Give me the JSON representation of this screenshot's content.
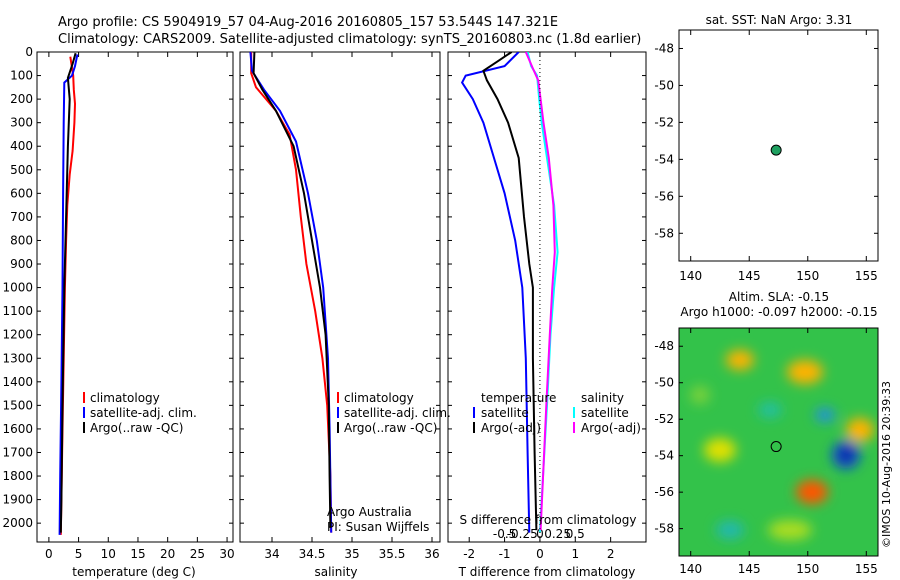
{
  "header": {
    "line1": "Argo profile: CS 5904919_57 04-Aug-2016 20160805_157 53.544S 147.321E",
    "line2": "Climatology: CARS2009. Satellite-adjusted climatology: synTS_20160803.nc (1.8d earlier)"
  },
  "colors": {
    "climatology": "#ff0000",
    "satellite": "#0000ff",
    "argo": "#000000",
    "sat_salinity": "#00ffff",
    "argo_salinity": "#ff00ff",
    "marker": "#1fa060"
  },
  "chart_data": [
    {
      "type": "line",
      "xlabel": "temperature (deg C)",
      "xlim": [
        -2,
        31
      ],
      "ylim": [
        2080,
        0
      ],
      "xticks": [
        0,
        5,
        10,
        15,
        20,
        25,
        30
      ],
      "yticks": [
        0,
        100,
        200,
        300,
        400,
        500,
        600,
        700,
        800,
        900,
        1000,
        1100,
        1200,
        1300,
        1400,
        1500,
        1600,
        1700,
        1800,
        1900,
        2000
      ],
      "legend": [
        "climatology",
        "satellite-adj. clim.",
        "Argo(..raw -QC)"
      ],
      "series": [
        {
          "name": "climatology",
          "color": "#ff0000",
          "points": [
            [
              3.6,
              20
            ],
            [
              4.1,
              100
            ],
            [
              4.2,
              160
            ],
            [
              4.4,
              220
            ],
            [
              4.3,
              300
            ],
            [
              4.0,
              420
            ],
            [
              3.5,
              520
            ],
            [
              3.1,
              650
            ],
            [
              2.9,
              800
            ],
            [
              2.7,
              1000
            ],
            [
              2.5,
              1300
            ],
            [
              2.3,
              1600
            ],
            [
              2.1,
              1900
            ],
            [
              2.0,
              2050
            ]
          ]
        },
        {
          "name": "satellite-adj. clim.",
          "color": "#0000ff",
          "points": [
            [
              4.8,
              10
            ],
            [
              4.4,
              60
            ],
            [
              3.9,
              100
            ],
            [
              2.6,
              130
            ],
            [
              2.5,
              300
            ],
            [
              2.4,
              600
            ],
            [
              2.3,
              1000
            ],
            [
              2.1,
              1400
            ],
            [
              1.9,
              1800
            ],
            [
              1.8,
              2050
            ]
          ]
        },
        {
          "name": "Argo(..raw -QC)",
          "color": "#000000",
          "points": [
            [
              4.5,
              5
            ],
            [
              4.0,
              50
            ],
            [
              3.2,
              110
            ],
            [
              3.5,
              200
            ],
            [
              3.2,
              400
            ],
            [
              2.9,
              700
            ],
            [
              2.6,
              1000
            ],
            [
              2.3,
              1500
            ],
            [
              2.1,
              1900
            ],
            [
              2.0,
              2040
            ]
          ]
        }
      ]
    },
    {
      "type": "line",
      "xlabel": "salinity",
      "xlim": [
        33.6,
        36.1
      ],
      "ylim": [
        2080,
        0
      ],
      "xticks": [
        34,
        34.5,
        35,
        35.5,
        36
      ],
      "legend": [
        "climatology",
        "satellite-adj. clim.",
        "Argo(..raw -QC)"
      ],
      "footnote": [
        "Argo Australia",
        "PI: Susan Wijffels"
      ],
      "series": [
        {
          "name": "climatology",
          "color": "#ff0000",
          "points": [
            [
              33.74,
              0
            ],
            [
              33.74,
              90
            ],
            [
              33.8,
              150
            ],
            [
              34.05,
              250
            ],
            [
              34.22,
              350
            ],
            [
              34.3,
              500
            ],
            [
              34.36,
              700
            ],
            [
              34.43,
              900
            ],
            [
              34.54,
              1100
            ],
            [
              34.63,
              1300
            ],
            [
              34.69,
              1500
            ],
            [
              34.73,
              1800
            ],
            [
              34.74,
              2040
            ]
          ]
        },
        {
          "name": "satellite-adj. clim.",
          "color": "#0000ff",
          "points": [
            [
              33.73,
              0
            ],
            [
              33.75,
              80
            ],
            [
              33.9,
              160
            ],
            [
              34.1,
              250
            ],
            [
              34.3,
              380
            ],
            [
              34.45,
              600
            ],
            [
              34.56,
              800
            ],
            [
              34.64,
              1000
            ],
            [
              34.7,
              1300
            ],
            [
              34.72,
              1600
            ],
            [
              34.74,
              2040
            ]
          ]
        },
        {
          "name": "Argo(..raw -QC)",
          "color": "#000000",
          "points": [
            [
              33.78,
              0
            ],
            [
              33.77,
              90
            ],
            [
              33.88,
              160
            ],
            [
              34.05,
              250
            ],
            [
              34.27,
              400
            ],
            [
              34.4,
              600
            ],
            [
              34.5,
              800
            ],
            [
              34.6,
              1000
            ],
            [
              34.67,
              1200
            ],
            [
              34.71,
              1500
            ],
            [
              34.72,
              1800
            ],
            [
              34.73,
              2020
            ]
          ]
        }
      ]
    },
    {
      "type": "line",
      "xlabel": "T difference from climatology",
      "xlabel_top": "S difference from climatology",
      "xlim": [
        -2.6,
        3.0
      ],
      "ylim": [
        2080,
        0
      ],
      "xticks": [
        -2,
        -1,
        0,
        1,
        2
      ],
      "sticks": [
        -0.5,
        -0.25,
        0,
        0.25,
        0.5
      ],
      "legend_left_title": "temperature",
      "legend_right_title": "salinity",
      "legend_left": [
        "satellite",
        "Argo(-adj)"
      ],
      "legend_right": [
        "satellite",
        "Argo(-adj)"
      ],
      "series": [
        {
          "name": "satellite",
          "color": "#0000ff",
          "points": [
            [
              -0.6,
              0
            ],
            [
              -1.0,
              60
            ],
            [
              -2.1,
              100
            ],
            [
              -2.2,
              130
            ],
            [
              -1.9,
              200
            ],
            [
              -1.6,
              300
            ],
            [
              -1.3,
              450
            ],
            [
              -1.0,
              600
            ],
            [
              -0.7,
              800
            ],
            [
              -0.5,
              1000
            ],
            [
              -0.4,
              1300
            ],
            [
              -0.35,
              1700
            ],
            [
              -0.3,
              2040
            ]
          ]
        },
        {
          "name": "Argo(-adj)",
          "color": "#000000",
          "points": [
            [
              -0.8,
              0
            ],
            [
              -1.2,
              40
            ],
            [
              -1.6,
              80
            ],
            [
              -1.5,
              120
            ],
            [
              -1.2,
              200
            ],
            [
              -0.9,
              300
            ],
            [
              -0.6,
              450
            ],
            [
              -0.45,
              700
            ],
            [
              -0.3,
              900
            ],
            [
              -0.2,
              1000
            ],
            [
              -0.2,
              1300
            ],
            [
              -0.15,
              1700
            ],
            [
              -0.1,
              2030
            ]
          ]
        },
        {
          "name": "satellite",
          "color": "#00ffff",
          "points": [
            [
              -0.35,
              0
            ],
            [
              -0.25,
              60
            ],
            [
              -0.08,
              100
            ],
            [
              -0.02,
              200
            ],
            [
              0.05,
              300
            ],
            [
              0.2,
              450
            ],
            [
              0.4,
              650
            ],
            [
              0.5,
              850
            ],
            [
              0.4,
              1000
            ],
            [
              0.3,
              1200
            ],
            [
              0.2,
              1500
            ],
            [
              0.05,
              1900
            ],
            [
              0,
              2040
            ]
          ]
        },
        {
          "name": "Argo(-adj)",
          "color": "#ff00ff",
          "points": [
            [
              -0.4,
              0
            ],
            [
              -0.2,
              70
            ],
            [
              -0.05,
              120
            ],
            [
              0.02,
              200
            ],
            [
              0.1,
              300
            ],
            [
              0.25,
              450
            ],
            [
              0.38,
              650
            ],
            [
              0.42,
              850
            ],
            [
              0.35,
              1000
            ],
            [
              0.28,
              1200
            ],
            [
              0.18,
              1500
            ],
            [
              0.06,
              1900
            ],
            [
              0.02,
              2030
            ]
          ]
        }
      ]
    },
    {
      "type": "scatter",
      "title": "sat. SST: NaN Argo: 3.31",
      "xlim": [
        139,
        156
      ],
      "ylim": [
        -59.5,
        -47
      ],
      "xticks": [
        140,
        145,
        150,
        155
      ],
      "yticks": [
        -48,
        -50,
        -52,
        -54,
        -56,
        -58
      ],
      "points": [
        [
          147.3,
          -53.5
        ]
      ]
    },
    {
      "type": "heatmap",
      "title_line1": "Altim. SLA: -0.15",
      "title_line2": "Argo h1000: -0.097 h2000: -0.15",
      "xlim": [
        139,
        156
      ],
      "ylim": [
        -59.5,
        -47
      ],
      "xticks": [
        140,
        145,
        150,
        155
      ],
      "yticks": [
        -48,
        -50,
        -52,
        -54,
        -56,
        -58
      ],
      "marker": [
        147.3,
        -53.5
      ],
      "side_label": "©IMOS 10-Aug-2016 20:39:33"
    }
  ]
}
